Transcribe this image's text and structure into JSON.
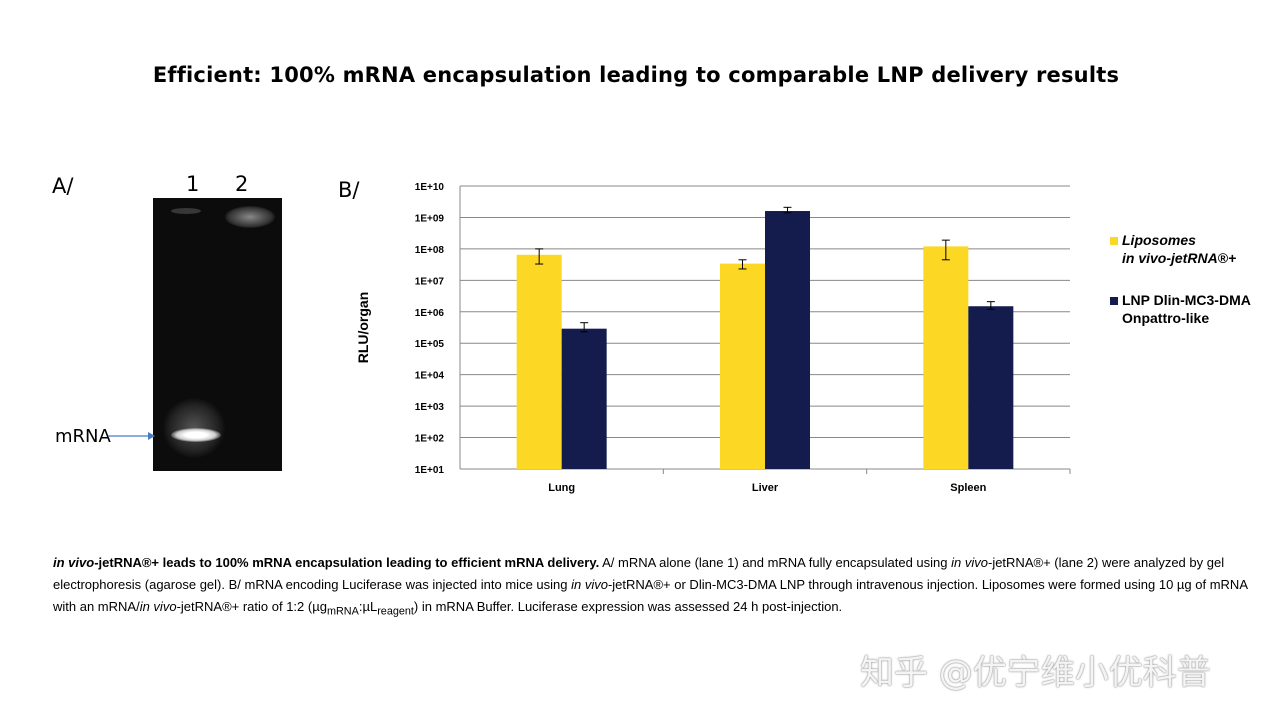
{
  "title": "Efficient: 100% mRNA encapsulation leading to comparable LNP delivery results",
  "panel_a": {
    "label": "A/",
    "lanes": [
      "1",
      "2"
    ],
    "band_label": "mRNA"
  },
  "panel_b": {
    "label": "B/"
  },
  "chart_data": {
    "type": "bar",
    "yscale": "log",
    "ylabel": "RLU/organ",
    "ylim": [
      10,
      10000000000
    ],
    "yticks": [
      "1E+01",
      "1E+02",
      "1E+03",
      "1E+04",
      "1E+05",
      "1E+06",
      "1E+07",
      "1E+08",
      "1E+09",
      "1E+10"
    ],
    "grid": true,
    "legend_placement": "right",
    "categories": [
      "Lung",
      "Liver",
      "Spleen"
    ],
    "series": [
      {
        "name_line1": "Liposomes",
        "name_line2": "in vivo-jetRNA®+",
        "color": "#fcd824",
        "values": [
          65000000,
          34000000,
          120000000
        ],
        "err_low": [
          33000000,
          23000000,
          45000000
        ],
        "err_high": [
          100000000,
          45000000,
          190000000
        ]
      },
      {
        "name_line1": "LNP Dlin-MC3-DMA",
        "name_line2": "Onpattro-like",
        "color": "#141c4d",
        "values": [
          290000,
          1600000000,
          1500000
        ],
        "err_low": [
          230000,
          1400000000,
          1200000
        ],
        "err_high": [
          450000,
          2100000000,
          2100000
        ]
      }
    ]
  },
  "caption": {
    "bold_italic": "in vivo",
    "bold": "-jetRNA®+ leads to 100% mRNA encapsulation leading to efficient mRNA delivery.",
    "t1": " A/ mRNA alone (lane 1) and mRNA fully encapsulated using ",
    "i1": "in vivo",
    "t2": "-jetRNA®+ (lane 2) were analyzed by gel electrophoresis (agarose gel). B/ mRNA encoding Luciferase was injected into mice using ",
    "i2": "in vivo",
    "t3": "-jetRNA®+ or Dlin-MC3-DMA LNP through  intravenous injection. Liposomes were formed using 10 µg of mRNA with an mRNA/",
    "i3": "in vivo",
    "t4": "-jetRNA®+ ratio of 1:2 (µg",
    "sub1": "mRNA",
    "t5": ":µL",
    "sub2": "reagent",
    "t6": ") in mRNA Buffer. Luciferase expression was assessed 24 h post-injection."
  },
  "watermark": "知乎 @优宁维小优科普"
}
